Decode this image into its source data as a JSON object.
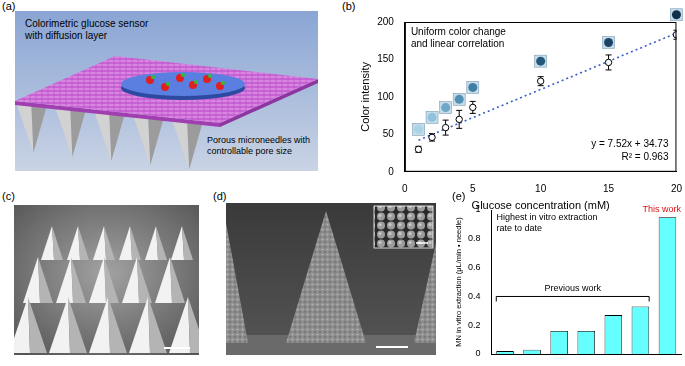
{
  "panels": {
    "a": {
      "label": "(a)",
      "texts": {
        "sensor": [
          "Colorimetric glucose sensor",
          "with diffusion layer"
        ],
        "needles": [
          "Porous microneedles with",
          "controllable pore size"
        ]
      }
    },
    "c": {
      "label": "(c)"
    },
    "d": {
      "label": "(d)"
    }
  },
  "chart_data": [
    {
      "label": "(b)",
      "type": "scatter",
      "annotations": {
        "headline": [
          "Uniform color change",
          "and linear correlation"
        ],
        "equation": [
          "y = 7.52x + 34.73",
          "R² = 0.963"
        ]
      },
      "x_label": "Glucose concentration (mM)",
      "y_label": "Color intensity",
      "xlim": [
        0,
        20
      ],
      "xticks": [
        0,
        5,
        10,
        15,
        20
      ],
      "ylim": [
        0,
        200
      ],
      "yticks": [
        0,
        50,
        100,
        150,
        200
      ],
      "grid": false,
      "series": [
        {
          "type": "scatter",
          "x": [
            1,
            2,
            3,
            4,
            5,
            10,
            15,
            20
          ],
          "values": [
            30,
            46,
            59,
            70,
            86,
            121,
            146,
            183
          ],
          "errors": [
            4,
            5,
            10,
            12,
            8,
            6,
            10,
            6
          ],
          "marker": "circle",
          "color": "#000000",
          "colors": [
            "#a9d4e6",
            "#8fc3dc",
            "#6ea8c6",
            "#5290b6",
            "#3f7ea5",
            "#24577a",
            "#1b4566",
            "#10304a"
          ]
        },
        {
          "type": "line",
          "x": [
            1,
            20
          ],
          "values": [
            42.25,
            185.13
          ],
          "line_style": "dotted",
          "color": "#3b5fc8"
        }
      ]
    },
    {
      "label": "(e)",
      "type": "bar",
      "annotations": {
        "headline": [
          "Highest in vitro extraction",
          "rate to date"
        ],
        "previous": "Previous work",
        "current": "This work"
      },
      "y_label": "MN in vitro extraction (μL/min • needle)",
      "categories": [
        null,
        null,
        null,
        null,
        null,
        null,
        null
      ],
      "values": [
        0.02,
        0.03,
        0.16,
        0.16,
        0.27,
        0.33,
        0.95
      ],
      "color": "#66ffff",
      "ylim": [
        0,
        1
      ],
      "yticks": [
        0,
        0.2,
        0.4,
        0.6,
        0.8,
        1
      ],
      "grid": false,
      "tick_labels": "y"
    }
  ]
}
